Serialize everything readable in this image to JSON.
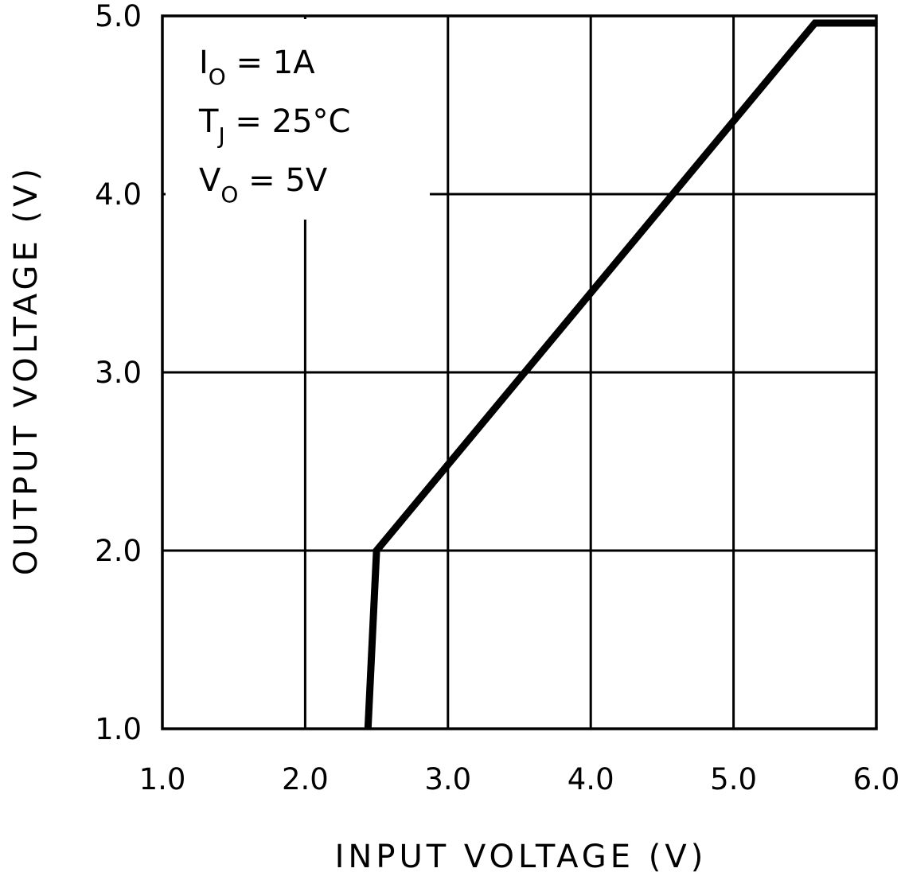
{
  "chart_data": {
    "type": "line",
    "title": "",
    "xlabel": "INPUT VOLTAGE (V)",
    "ylabel": "OUTPUT VOLTAGE (V)",
    "xlim": [
      1.0,
      6.0
    ],
    "ylim": [
      1.0,
      5.0
    ],
    "x_ticks": [
      "1.0",
      "2.0",
      "3.0",
      "4.0",
      "5.0",
      "6.0"
    ],
    "y_ticks": [
      "1.0",
      "2.0",
      "3.0",
      "4.0",
      "5.0"
    ],
    "grid": true,
    "series": [
      {
        "x": [
          2.44,
          2.5,
          5.57,
          6.0
        ],
        "y": [
          1.0,
          2.0,
          4.96,
          4.96
        ],
        "color": "#000000"
      }
    ],
    "annotations": [
      {
        "main": "I",
        "sub": "O",
        "rest": " = 1A"
      },
      {
        "main": "T",
        "sub": "J",
        "rest": " = 25°C"
      },
      {
        "main": "V",
        "sub": "O",
        "rest": " = 5V"
      }
    ]
  }
}
